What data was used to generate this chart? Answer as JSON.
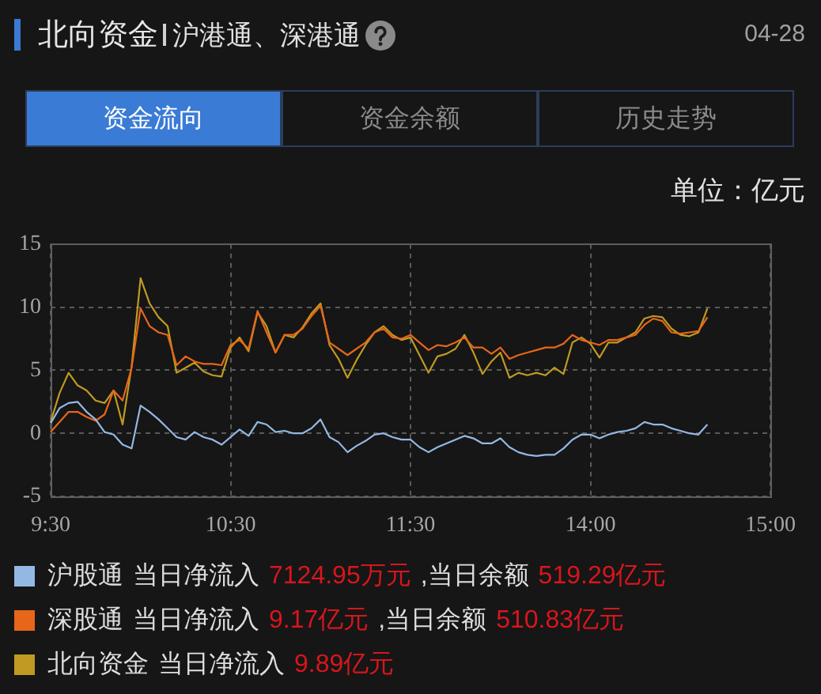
{
  "chart_data": {
    "type": "line",
    "title": "北向资金",
    "subtitle": "沪港通、深港通",
    "ylabel": "单位：亿元",
    "annotations": [
      "04-28",
      "资金流向",
      "资金余额",
      "历史走势",
      "当日净流入",
      "7124.95万元",
      ",当日余额",
      "519.29亿元",
      "当日净流入",
      "9.17亿元",
      ",当日余额",
      "510.83亿元",
      "当日净流入",
      "9.89亿元"
    ],
    "categories": [
      "9:30",
      null,
      null,
      null,
      null,
      null,
      null,
      null,
      null,
      null,
      null,
      null,
      null,
      null,
      null,
      null,
      null,
      null,
      null,
      null,
      "10:30",
      null,
      null,
      null,
      null,
      null,
      null,
      null,
      null,
      null,
      null,
      null,
      null,
      null,
      null,
      null,
      null,
      null,
      null,
      null,
      "11:30",
      null,
      null,
      null,
      null,
      null,
      null,
      null,
      null,
      null,
      null,
      null,
      null,
      null,
      null,
      null,
      null,
      null,
      null,
      null,
      "14:00",
      null,
      null,
      null,
      null,
      null,
      null,
      null,
      null,
      null,
      null,
      null,
      null,
      null,
      null,
      null,
      null,
      null,
      null,
      null,
      "15:00"
    ],
    "series": [
      {
        "name": "沪股通",
        "color": "#94b8e4",
        "values": [
          0.8,
          2.0,
          2.4,
          2.5,
          1.7,
          1.1,
          0.1,
          -0.1,
          -0.9,
          -1.2,
          2.2,
          1.7,
          1.1,
          0.4,
          -0.3,
          -0.5,
          0.1,
          -0.3,
          -0.5,
          -0.9,
          -0.3,
          0.3,
          -0.2,
          0.9,
          0.7,
          0.1,
          0.2,
          0.0,
          0.0,
          0.4,
          1.1,
          -0.3,
          -0.7,
          -1.5,
          -1.0,
          -0.6,
          -0.1,
          0.0,
          -0.3,
          -0.5,
          -0.5,
          -1.1,
          -1.5,
          -1.1,
          -0.8,
          -0.5,
          -0.2,
          -0.4,
          -0.8,
          -0.8,
          -0.4,
          -1.1,
          -1.5,
          -1.7,
          -1.8,
          -1.7,
          -1.7,
          -1.2,
          -0.5,
          -0.1,
          -0.1,
          -0.4,
          -0.1,
          0.1,
          0.2,
          0.4,
          0.9,
          0.7,
          0.7,
          0.4,
          0.2,
          0.0,
          -0.1,
          0.7,
          null,
          null,
          null,
          null,
          null,
          null,
          null
        ]
      },
      {
        "name": "深股通",
        "color": "#e8661a",
        "values": [
          0.1,
          0.9,
          1.7,
          1.7,
          1.3,
          1.0,
          1.5,
          3.4,
          2.6,
          5.2,
          9.9,
          8.5,
          8.0,
          7.8,
          5.4,
          6.1,
          5.7,
          5.5,
          5.5,
          5.4,
          7.0,
          7.4,
          6.7,
          9.7,
          8.0,
          6.4,
          7.8,
          7.8,
          8.3,
          9.3,
          10.1,
          7.2,
          6.7,
          6.2,
          6.7,
          7.2,
          8.0,
          8.3,
          7.6,
          7.5,
          7.8,
          7.2,
          6.6,
          7.0,
          6.9,
          7.2,
          7.6,
          6.8,
          6.8,
          6.3,
          6.8,
          5.9,
          6.2,
          6.4,
          6.6,
          6.8,
          6.8,
          7.1,
          7.8,
          7.4,
          7.2,
          7.0,
          7.4,
          7.4,
          7.6,
          7.8,
          8.6,
          9.1,
          8.9,
          8.0,
          7.9,
          8.0,
          8.1,
          9.2,
          null,
          null,
          null,
          null,
          null,
          null,
          null
        ]
      },
      {
        "name": "北向资金",
        "color": "#c09a22",
        "values": [
          0.9,
          3.2,
          4.8,
          3.8,
          3.4,
          2.6,
          2.4,
          3.4,
          0.7,
          5.3,
          12.3,
          10.3,
          9.2,
          8.5,
          4.8,
          5.2,
          5.6,
          4.9,
          4.6,
          4.5,
          6.8,
          7.6,
          6.5,
          9.6,
          8.5,
          6.4,
          7.8,
          7.6,
          8.4,
          9.5,
          10.3,
          7.0,
          5.9,
          4.4,
          5.8,
          7.0,
          8.0,
          8.5,
          7.8,
          7.4,
          7.6,
          6.2,
          4.8,
          6.1,
          6.3,
          6.7,
          7.8,
          6.4,
          4.7,
          5.7,
          6.4,
          4.4,
          4.8,
          4.6,
          4.8,
          4.6,
          5.2,
          4.7,
          7.2,
          7.6,
          7.1,
          6.0,
          7.2,
          7.2,
          7.6,
          8.0,
          9.1,
          9.3,
          9.2,
          8.3,
          7.8,
          7.7,
          8.0,
          9.9,
          null,
          null,
          null,
          null,
          null,
          null,
          null
        ]
      }
    ],
    "ylim": [
      -5,
      15
    ],
    "yticks": [
      -5,
      0,
      5,
      10,
      15
    ],
    "grid": true,
    "legend": "bottom"
  }
}
